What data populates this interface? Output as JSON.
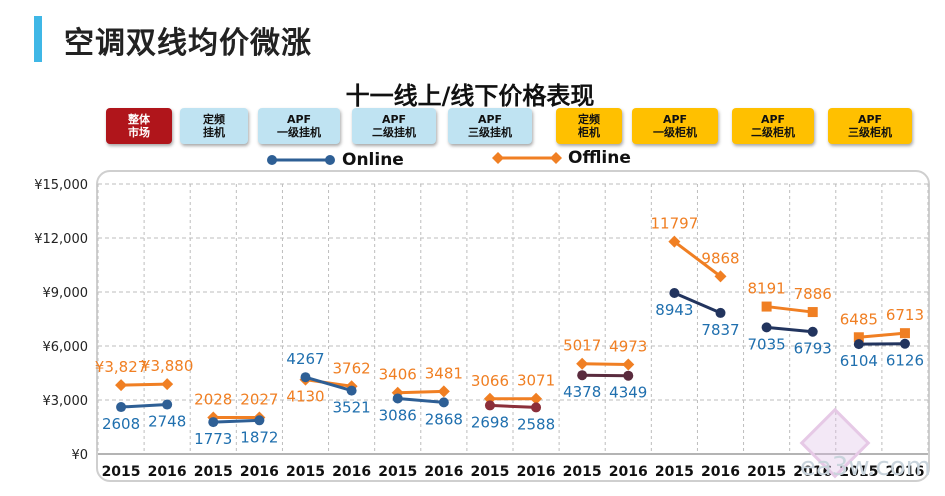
{
  "header": {
    "title": "空调双线均价微涨"
  },
  "categories": [
    {
      "label": "整体\n市场",
      "color": "red"
    },
    {
      "label": "定频\n挂机",
      "color": "blue"
    },
    {
      "label": "APF\n一级挂机",
      "color": "blue"
    },
    {
      "label": "APF\n二级挂机",
      "color": "blue"
    },
    {
      "label": "APF\n三级挂机",
      "color": "blue"
    },
    {
      "label": "定频\n柜机",
      "color": "yellow"
    },
    {
      "label": "APF\n一级柜机",
      "color": "yellow"
    },
    {
      "label": "APF\n二级柜机",
      "color": "yellow"
    },
    {
      "label": "APF\n三级柜机",
      "color": "yellow"
    }
  ],
  "legend": {
    "online": "Online",
    "offline": "Offline"
  },
  "colors": {
    "online": "#2e5f95",
    "offline": "#f07f23",
    "online_label": "#1f6fae",
    "offline_label": "#f07f23",
    "grid": "#bdbdbd",
    "tab_red": "#b0151b",
    "tab_blue": "#bfe3f2",
    "tab_yellow": "#ffc000"
  },
  "watermark": "ea3w.com",
  "chart_data": {
    "type": "line",
    "title": "十一线上/线下价格表现",
    "x": [
      "2015",
      "2016",
      "2015",
      "2016",
      "2015",
      "2016",
      "2015",
      "2016",
      "2015",
      "2016",
      "2015",
      "2016",
      "2015",
      "2016",
      "2015",
      "2016",
      "2015",
      "2016"
    ],
    "ylim": [
      0,
      15000
    ],
    "yticks": [
      0,
      3000,
      6000,
      9000,
      12000,
      15000
    ],
    "ytick_labels": [
      "¥0",
      "¥3,000",
      "¥6,000",
      "¥9,000",
      "¥12,000",
      "¥15,000"
    ],
    "grid": true,
    "groups": [
      {
        "category": "整体市场",
        "online": [
          2608,
          2748
        ],
        "offline": [
          3827,
          3880
        ],
        "online_labels": [
          "2608",
          "2748"
        ],
        "offline_labels": [
          "¥3,827",
          "¥3,880"
        ],
        "online_color": "#2e5f95",
        "offline_marker": "diamond"
      },
      {
        "category": "定频挂机",
        "online": [
          1773,
          1872
        ],
        "offline": [
          2028,
          2027
        ],
        "online_labels": [
          "1773",
          "1872"
        ],
        "offline_labels": [
          "2028",
          "2027"
        ],
        "online_color": "#2e5f95",
        "offline_marker": "diamond"
      },
      {
        "category": "APF一级挂机",
        "online": [
          4267,
          3521
        ],
        "offline": [
          4130,
          3762
        ],
        "online_labels": [
          "4267",
          "3521"
        ],
        "offline_labels": [
          "4130",
          "3762"
        ],
        "online_color": "#2e5f95",
        "offline_marker": "diamond"
      },
      {
        "category": "APF二级挂机",
        "online": [
          3086,
          2868
        ],
        "offline": [
          3406,
          3481
        ],
        "online_labels": [
          "3086",
          "2868"
        ],
        "offline_labels": [
          "3406",
          "3481"
        ],
        "online_color": "#2e5f95",
        "offline_marker": "diamond"
      },
      {
        "category": "APF三级挂机",
        "online": [
          2698,
          2588
        ],
        "offline": [
          3066,
          3071
        ],
        "online_labels": [
          "2698",
          "2588"
        ],
        "offline_labels": [
          "3066",
          "3071"
        ],
        "online_color": "#8b2f3a",
        "offline_marker": "diamond"
      },
      {
        "category": "定频柜机",
        "online": [
          4378,
          4349
        ],
        "offline": [
          5017,
          4973
        ],
        "online_labels": [
          "4378",
          "4349"
        ],
        "offline_labels": [
          "5017",
          "4973"
        ],
        "online_color": "#5a2b3e",
        "offline_marker": "diamond"
      },
      {
        "category": "APF一级柜机",
        "online": [
          8943,
          7837
        ],
        "offline": [
          11797,
          9868
        ],
        "online_labels": [
          "8943",
          "7837"
        ],
        "offline_labels": [
          "11797",
          "9868"
        ],
        "online_color": "#22345e",
        "offline_marker": "diamond"
      },
      {
        "category": "APF二级柜机",
        "online": [
          7035,
          6793
        ],
        "offline": [
          8191,
          7886
        ],
        "online_labels": [
          "7035",
          "6793"
        ],
        "offline_labels": [
          "8191",
          "7886"
        ],
        "online_color": "#22345e",
        "offline_marker": "square"
      },
      {
        "category": "APF三级柜机",
        "online": [
          6104,
          6126
        ],
        "offline": [
          6485,
          6713
        ],
        "online_labels": [
          "6104",
          "6126"
        ],
        "offline_labels": [
          "6485",
          "6713"
        ],
        "online_color": "#22345e",
        "offline_marker": "square"
      }
    ]
  }
}
